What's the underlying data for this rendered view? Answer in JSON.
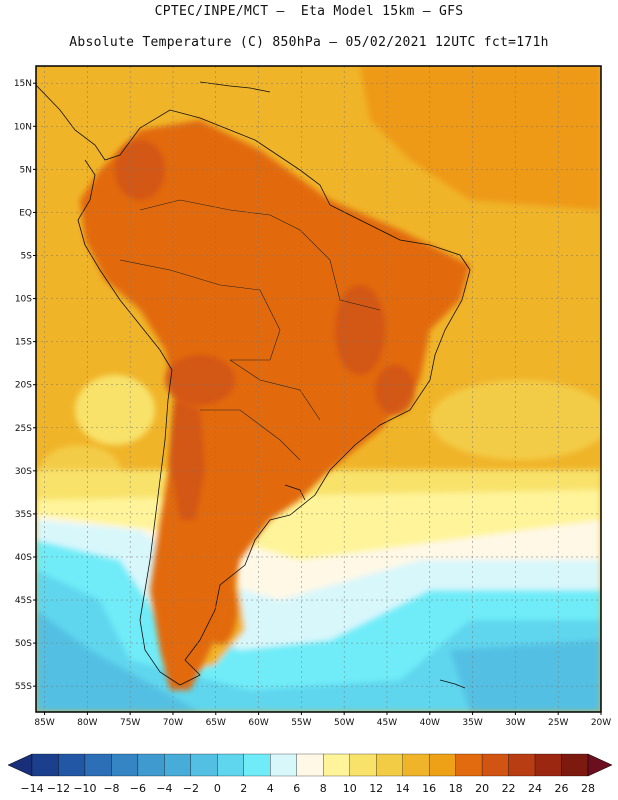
{
  "header": {
    "line1": "CPTEC/INPE/MCT –  Eta Model 15km – GFS",
    "line2": "Absolute Temperature (C) 850hPa – 05/02/2021 12UTC fct=171h"
  },
  "axes": {
    "lat_labels": [
      "15N",
      "10N",
      "5N",
      "EQ",
      "5S",
      "10S",
      "15S",
      "20S",
      "25S",
      "30S",
      "35S",
      "40S",
      "45S",
      "50S",
      "55S"
    ],
    "lon_labels": [
      "85W",
      "80W",
      "75W",
      "70W",
      "65W",
      "60W",
      "55W",
      "50W",
      "45W",
      "40W",
      "35W",
      "30W",
      "25W",
      "20W"
    ],
    "lat_range": [
      17,
      -58
    ],
    "lon_range": [
      -86,
      -20
    ],
    "grid": "dotted"
  },
  "colorbar": {
    "labels": [
      "-14",
      "-12",
      "-10",
      "-8",
      "-6",
      "-4",
      "-2",
      "0",
      "2",
      "4",
      "6",
      "8",
      "10",
      "12",
      "14",
      "16",
      "18",
      "20",
      "22",
      "24",
      "26",
      "28"
    ],
    "colors": [
      "#1b3f8c",
      "#2257a5",
      "#2c6fb7",
      "#3585c5",
      "#3f9acf",
      "#48acd8",
      "#53c0e3",
      "#5fd6ee",
      "#6fecf8",
      "#d8f7fb",
      "#fff8e6",
      "#fff49a",
      "#f8e26a",
      "#f3cc46",
      "#f0b42a",
      "#eea116",
      "#e26b0f",
      "#d25413",
      "#b83d12",
      "#9c2710",
      "#7d1a0f"
    ],
    "under_color": "#1a2f7a",
    "over_color": "#6b0f1f",
    "unit": "C"
  },
  "map": {
    "ocean_base": "#f0b429",
    "warm_land": "#e26b0f",
    "cool_ocean": "#6fecf8",
    "cold_ocean": "#53c0e3"
  }
}
